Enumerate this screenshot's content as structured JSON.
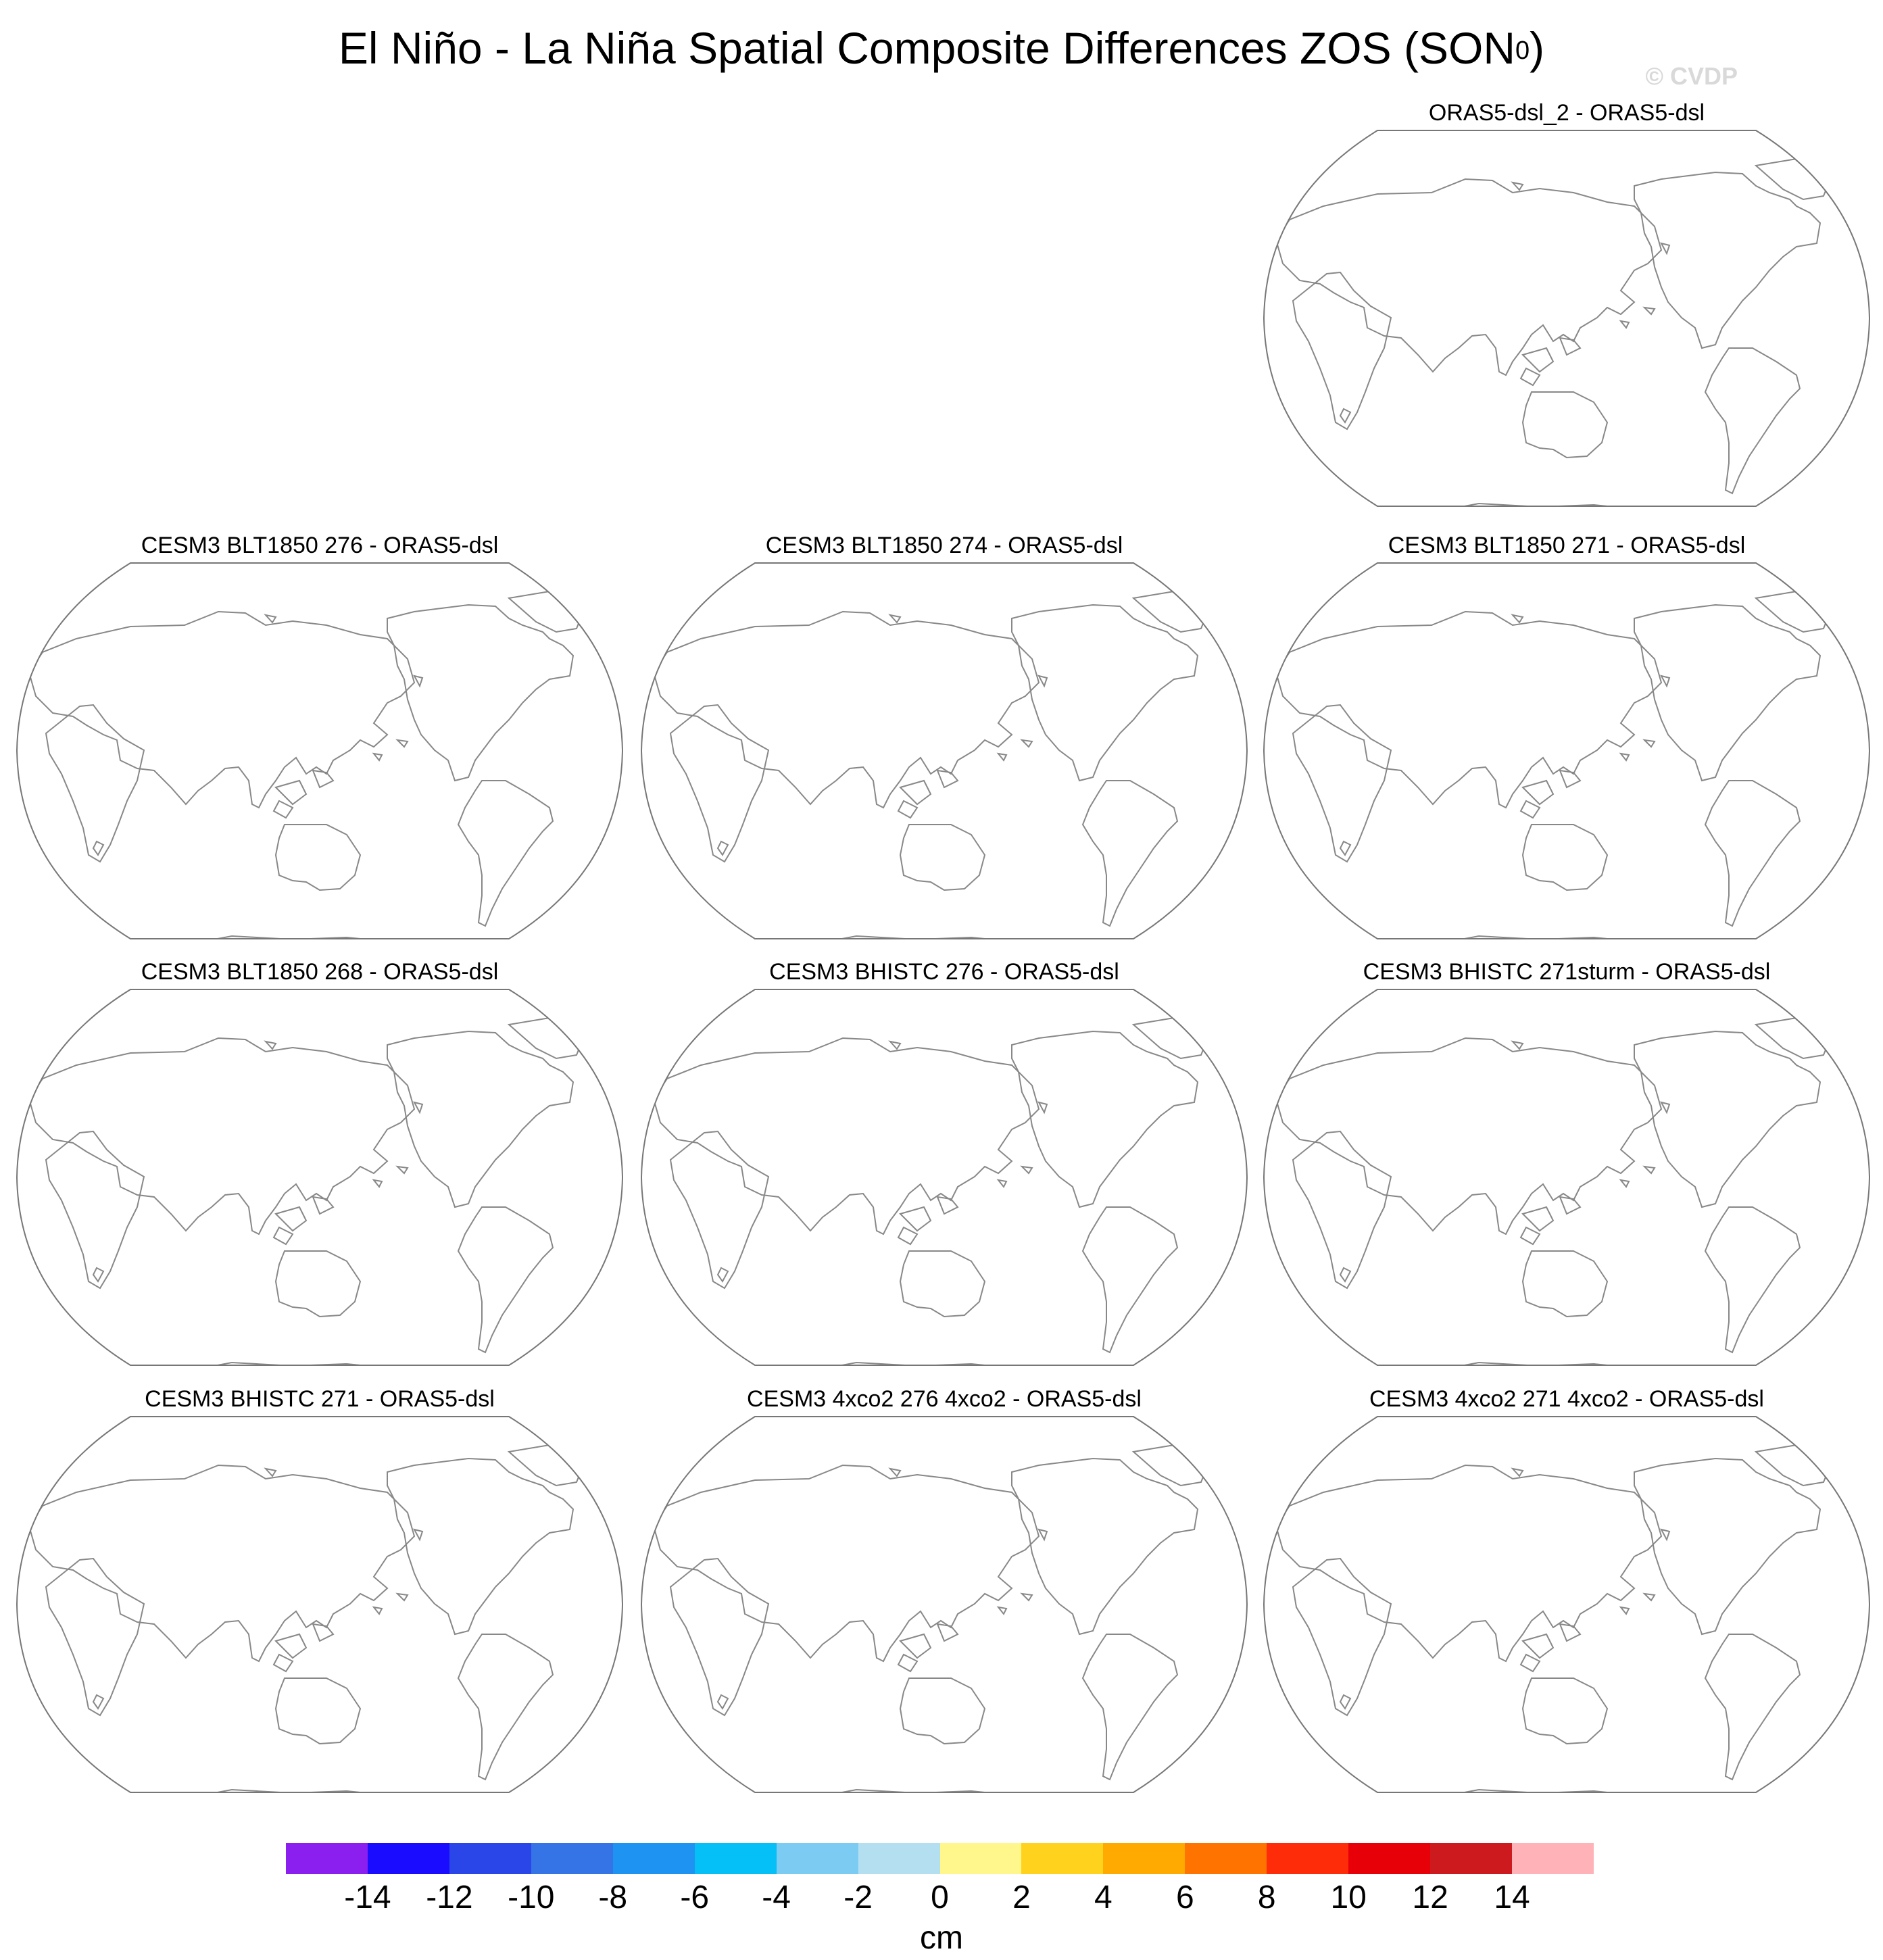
{
  "figure": {
    "title": "El Niño - La Niña Spatial Composite Differences ZOS (SON",
    "title_superscript": "0",
    "title_suffix": ")",
    "watermark": "© CVDP"
  },
  "panels": [
    {
      "title": "ORAS5-dsl_2 - ORAS5-dsl"
    },
    {
      "title": "CESM3 BLT1850 276 - ORAS5-dsl"
    },
    {
      "title": "CESM3 BLT1850 274 - ORAS5-dsl"
    },
    {
      "title": "CESM3 BLT1850 271 - ORAS5-dsl"
    },
    {
      "title": "CESM3 BLT1850 268 - ORAS5-dsl"
    },
    {
      "title": "CESM3 BHISTC 276 - ORAS5-dsl"
    },
    {
      "title": "CESM3 BHISTC 271sturm - ORAS5-dsl"
    },
    {
      "title": "CESM3 BHISTC 271 - ORAS5-dsl"
    },
    {
      "title": "CESM3 4xco2 276 4xco2 - ORAS5-dsl"
    },
    {
      "title": "CESM3 4xco2 271 4xco2 - ORAS5-dsl"
    }
  ],
  "colorbar": {
    "units": "cm",
    "colors": [
      "#8a1ff0",
      "#1a0cff",
      "#2a45e8",
      "#3474e6",
      "#1f93f2",
      "#05bff7",
      "#7ccbf2",
      "#b4dff1",
      "#fff68c",
      "#ffd21e",
      "#ffaa00",
      "#ff7400",
      "#ff2c0a",
      "#e80008",
      "#cd1a1f",
      "#ffb3b8"
    ],
    "labels": [
      "-14",
      "-12",
      "-10",
      "-8",
      "-6",
      "-4",
      "-2",
      "0",
      "2",
      "4",
      "6",
      "8",
      "10",
      "12",
      "14"
    ]
  },
  "map": {
    "projection": "Robinson, centered on the Pacific",
    "coastline_color": "#888888",
    "fill": "none (no data shaded)"
  }
}
